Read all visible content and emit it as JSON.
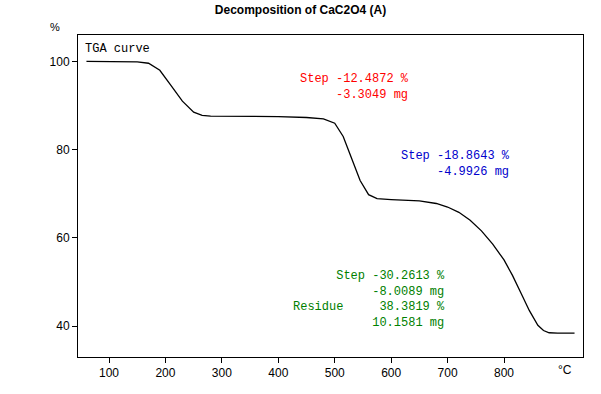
{
  "chart_data": {
    "type": "line",
    "title": "Decomposition of CaC2O4 (A)",
    "x_label": "°C",
    "y_label": "%",
    "series": [
      {
        "name": "TGA curve",
        "color": "#000000",
        "x": [
          60,
          100,
          150,
          170,
          190,
          210,
          230,
          250,
          265,
          280,
          300,
          350,
          400,
          450,
          480,
          500,
          515,
          530,
          545,
          560,
          575,
          600,
          650,
          680,
          700,
          720,
          740,
          760,
          780,
          800,
          815,
          830,
          845,
          860,
          870,
          880,
          895,
          925
        ],
        "values": [
          100,
          100,
          99.9,
          99.6,
          98,
          94.5,
          91,
          88.5,
          87.8,
          87.6,
          87.6,
          87.5,
          87.5,
          87.3,
          87.0,
          86,
          83,
          78,
          73,
          69.8,
          68.9,
          68.7,
          68.4,
          67.8,
          67,
          65.8,
          64,
          61.6,
          58.6,
          55,
          51.5,
          47.5,
          43.5,
          40.2,
          39,
          38.5,
          38.4,
          38.4
        ]
      }
    ],
    "xlim": [
      45,
      940
    ],
    "ylim": [
      33,
      106
    ],
    "xticks": [
      100,
      200,
      300,
      400,
      500,
      600,
      700,
      800
    ],
    "yticks": [
      40,
      60,
      80,
      100
    ],
    "grid": false,
    "annotations": [
      {
        "lines": [
          "Step -12.4872 %",
          "-3.3049 mg"
        ],
        "color": "#ff0000"
      },
      {
        "lines": [
          "Step -18.8643 %",
          "-4.9926 mg"
        ],
        "color": "#0000cc"
      },
      {
        "lines": [
          "Step -30.2613 %",
          "-8.0089 mg",
          "Residue     38.3819 %",
          "10.1581 mg"
        ],
        "color": "#008000"
      }
    ]
  }
}
